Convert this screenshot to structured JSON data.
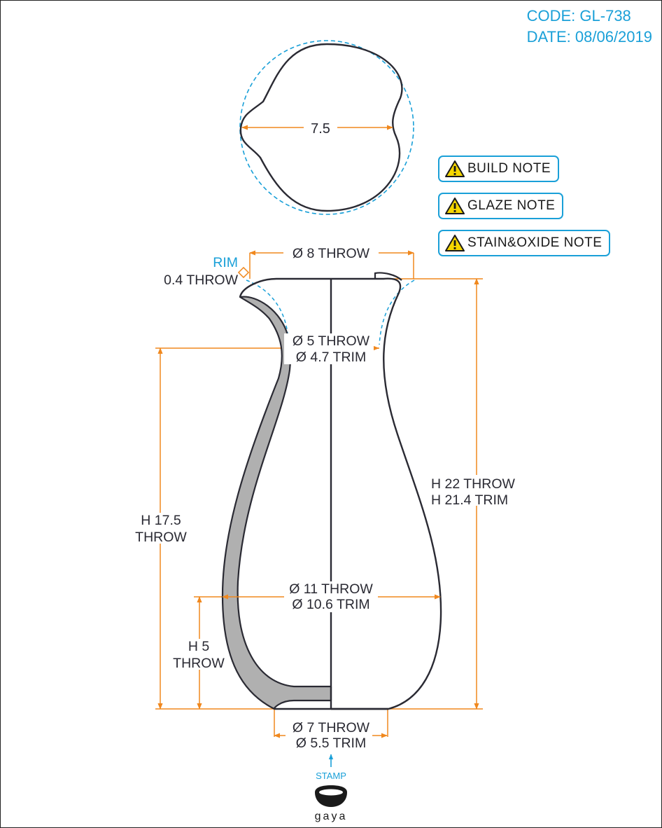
{
  "header": {
    "code_label": "CODE: GL-738",
    "date_label": "DATE: 08/06/2019"
  },
  "notes": [
    {
      "label": "BUILD NOTE",
      "icon": "warning-icon"
    },
    {
      "label": "GLAZE NOTE",
      "icon": "warning-icon"
    },
    {
      "label": "STAIN&OXIDE NOTE",
      "icon": "warning-icon"
    }
  ],
  "top_view": {
    "width_label": "7.5"
  },
  "dimensions": {
    "rim_label": "RIM",
    "rim_thickness": "0.4 THROW",
    "top_diameter": "Ø 8 THROW",
    "neck_throw": "Ø 5 THROW",
    "neck_trim": "Ø 4.7 TRIM",
    "body_throw": "Ø 11 THROW",
    "body_trim": "Ø 10.6 TRIM",
    "base_throw": "Ø 7 THROW",
    "base_trim": "Ø 5.5 TRIM",
    "height_neck_line1": "H 17.5",
    "height_neck_line2": "THROW",
    "height_belly_line1": "H 5",
    "height_belly_line2": "THROW",
    "height_total_throw": "H 22 THROW",
    "height_total_trim": "H 21.4 TRIM"
  },
  "stamp": {
    "label": "STAMP",
    "brand": "gaya"
  },
  "colors": {
    "dimension": "#f0881e",
    "accent": "#1aa0d8",
    "outline": "#2a2a33",
    "wall": "#b0b0b0",
    "warning": "#f5d600"
  }
}
